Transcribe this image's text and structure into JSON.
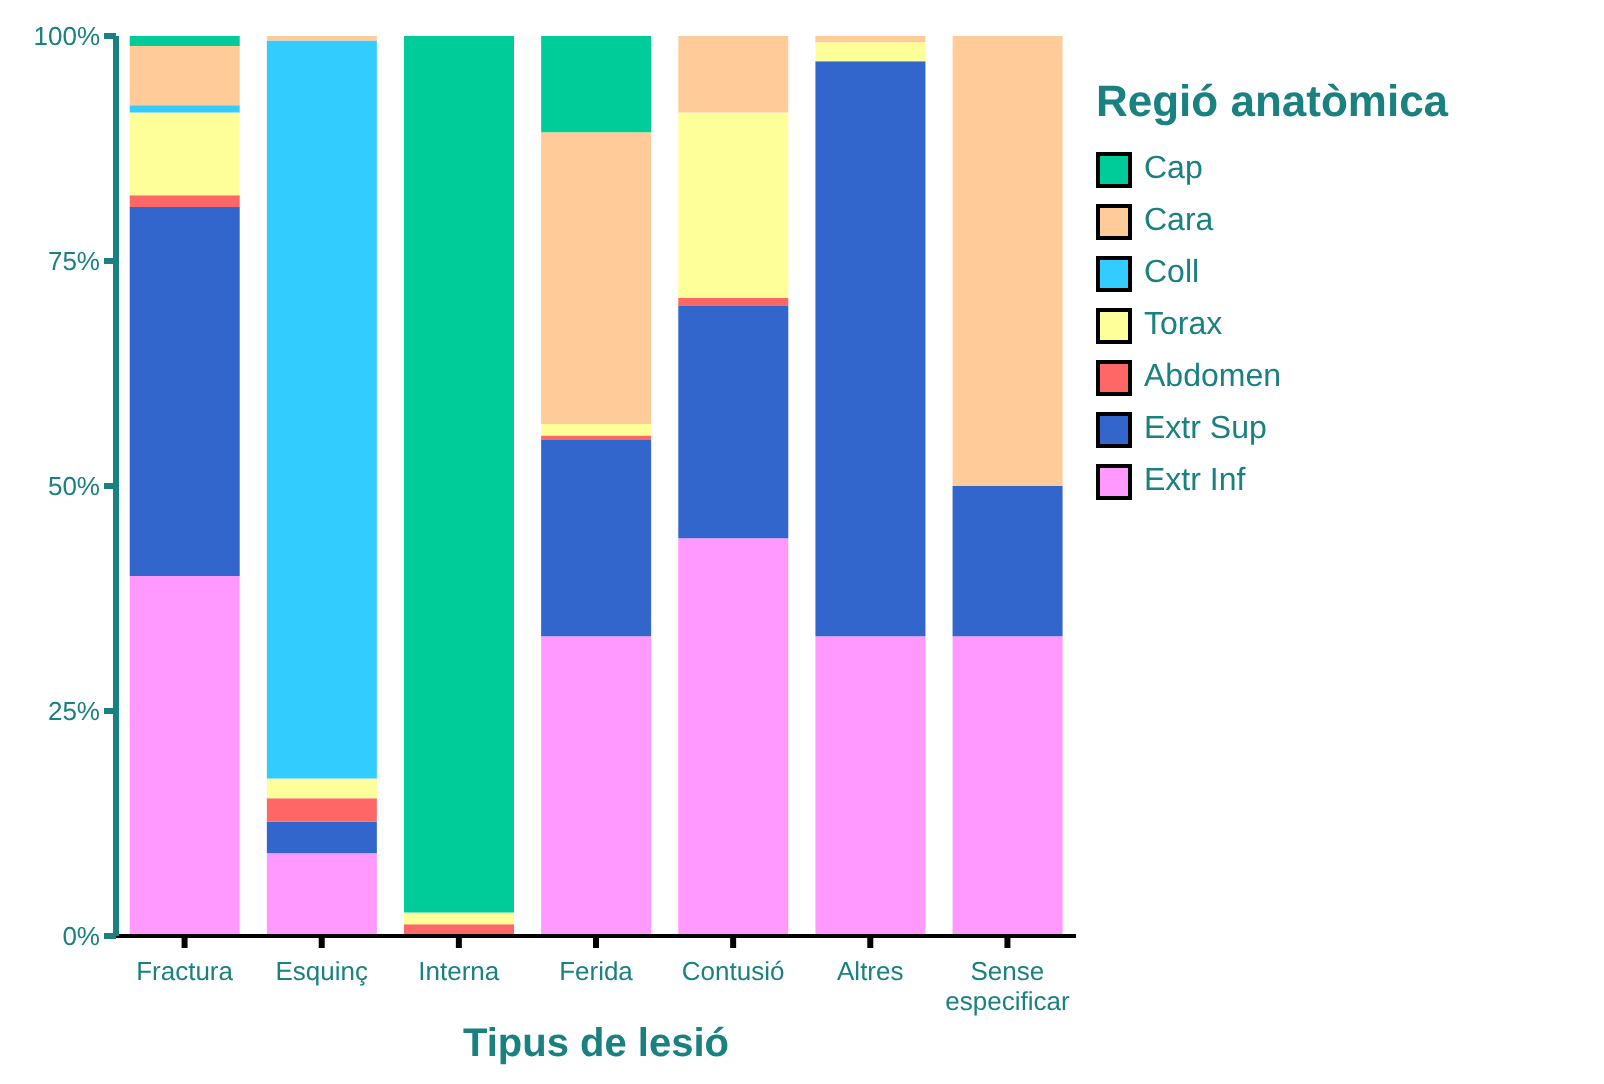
{
  "chart_data": {
    "type": "bar",
    "stacked": true,
    "xlabel": "Tipus de lesió",
    "legend_title": "Regió anatòmica",
    "legend": "right",
    "categories": [
      "Fractura",
      "Esquinç",
      "Interna",
      "Ferida",
      "Contusió",
      "Altres",
      "Sense especificar"
    ],
    "ylim": [
      0,
      100
    ],
    "yticks": [
      {
        "value": 0,
        "label": "0%"
      },
      {
        "value": 25,
        "label": "25%"
      },
      {
        "value": 50,
        "label": "50%"
      },
      {
        "value": 75,
        "label": "75%"
      },
      {
        "value": 100,
        "label": "100%"
      }
    ],
    "series": [
      {
        "name": "Extr Inf",
        "color": "#ff99ff",
        "values": [
          40,
          9.2,
          0,
          33.3,
          44.2,
          33.3,
          33.3
        ]
      },
      {
        "name": "Extr Sup",
        "color": "#3366cc",
        "values": [
          41,
          3.5,
          0,
          21.8,
          25.8,
          63.9,
          16.7
        ]
      },
      {
        "name": "Abdomen",
        "color": "#ff6666",
        "values": [
          1.3,
          2.6,
          1.3,
          0.5,
          0.9,
          0,
          0
        ]
      },
      {
        "name": "Torax",
        "color": "#ffff99",
        "values": [
          9.2,
          2.2,
          1.3,
          1.3,
          20.6,
          2.1,
          0
        ]
      },
      {
        "name": "Coll",
        "color": "#33ccff",
        "values": [
          0.8,
          82,
          0,
          0,
          0,
          0,
          0
        ]
      },
      {
        "name": "Cara",
        "color": "#ffcc99",
        "values": [
          6.6,
          0.5,
          0,
          32.4,
          8.5,
          0.7,
          50
        ]
      },
      {
        "name": "Cap",
        "color": "#00cc99",
        "values": [
          1.1,
          0,
          97.4,
          10.7,
          0,
          0,
          0
        ]
      }
    ]
  }
}
